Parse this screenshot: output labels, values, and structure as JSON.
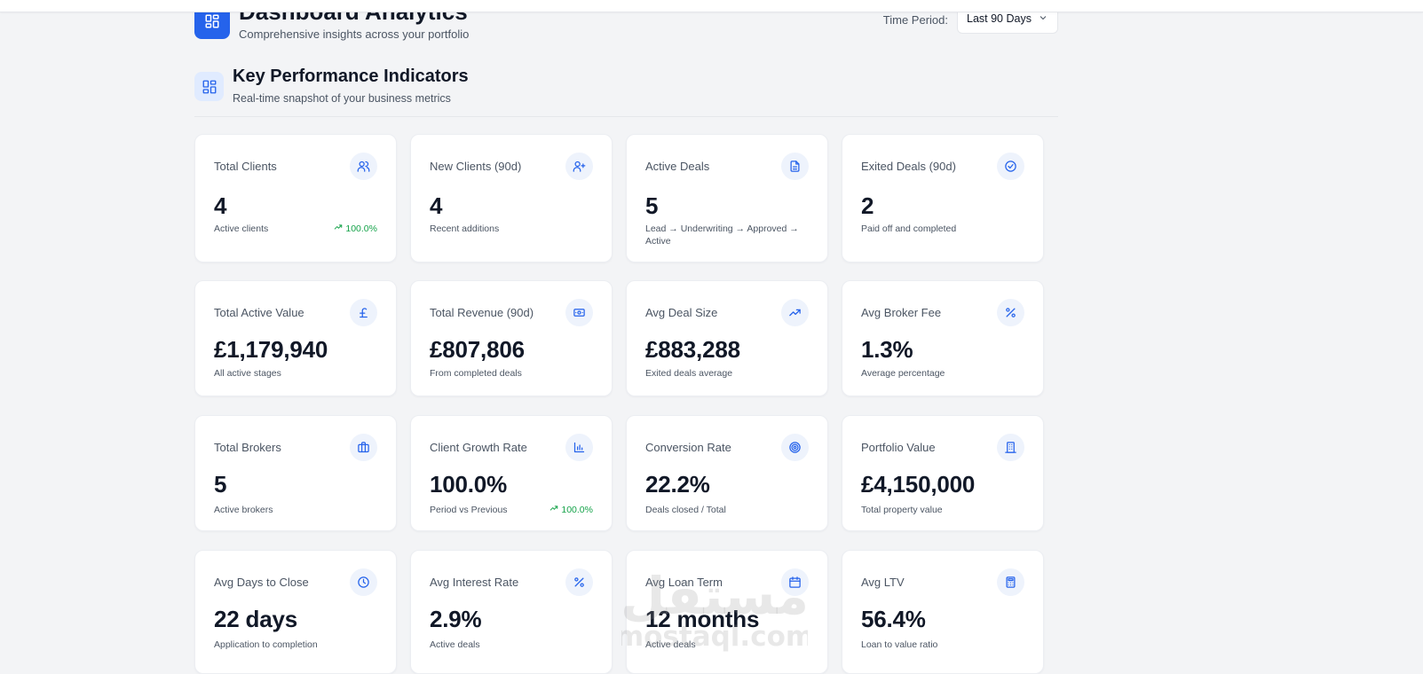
{
  "header": {
    "title": "Dashboard Analytics",
    "subtitle": "Comprehensive insights across your portfolio",
    "time_period_label": "Time Period:",
    "time_period_value": "Last 90 Days"
  },
  "kpi_section": {
    "title": "Key Performance Indicators",
    "subtitle": "Real-time snapshot of your business metrics"
  },
  "cards": [
    {
      "label": "Total Clients",
      "value": "4",
      "desc": "Active clients",
      "trend": "100.0%",
      "icon": "users-icon"
    },
    {
      "label": "New Clients (90d)",
      "value": "4",
      "desc": "Recent additions",
      "icon": "user-plus-icon"
    },
    {
      "label": "Active Deals",
      "value": "5",
      "desc": "Lead → Underwriting → Approved → Active",
      "icon": "document-icon"
    },
    {
      "label": "Exited Deals (90d)",
      "value": "2",
      "desc": "Paid off and completed",
      "icon": "check-circle-icon"
    },
    {
      "label": "Total Active Value",
      "value": "£1,179,940",
      "desc": "All active stages",
      "icon": "pound-icon"
    },
    {
      "label": "Total Revenue (90d)",
      "value": "£807,806",
      "desc": "From completed deals",
      "icon": "banknote-icon"
    },
    {
      "label": "Avg Deal Size",
      "value": "£883,288",
      "desc": "Exited deals average",
      "icon": "trending-up-icon"
    },
    {
      "label": "Avg Broker Fee",
      "value": "1.3%",
      "desc": "Average percentage",
      "icon": "percent-icon"
    },
    {
      "label": "Total Brokers",
      "value": "5",
      "desc": "Active brokers",
      "icon": "briefcase-icon"
    },
    {
      "label": "Client Growth Rate",
      "value": "100.0%",
      "desc": "Period vs Previous",
      "trend": "100.0%",
      "icon": "bar-chart-icon"
    },
    {
      "label": "Conversion Rate",
      "value": "22.2%",
      "desc": "Deals closed / Total",
      "icon": "target-icon"
    },
    {
      "label": "Portfolio Value",
      "value": "£4,150,000",
      "desc": "Total property value",
      "icon": "building-icon"
    },
    {
      "label": "Avg Days to Close",
      "value": "22 days",
      "desc": "Application to completion",
      "icon": "clock-icon"
    },
    {
      "label": "Avg Interest Rate",
      "value": "2.9%",
      "desc": "Active deals",
      "icon": "percent-icon"
    },
    {
      "label": "Avg Loan Term",
      "value": "12 months",
      "desc": "Active deals",
      "icon": "calendar-icon"
    },
    {
      "label": "Avg LTV",
      "value": "56.4%",
      "desc": "Loan to value ratio",
      "icon": "calculator-icon"
    }
  ],
  "watermark": {
    "text": "mostaql.com",
    "arabic": "مستقل"
  },
  "colors": {
    "accent": "#2563eb",
    "positive": "#16a34a",
    "background": "#f3f4f6"
  }
}
